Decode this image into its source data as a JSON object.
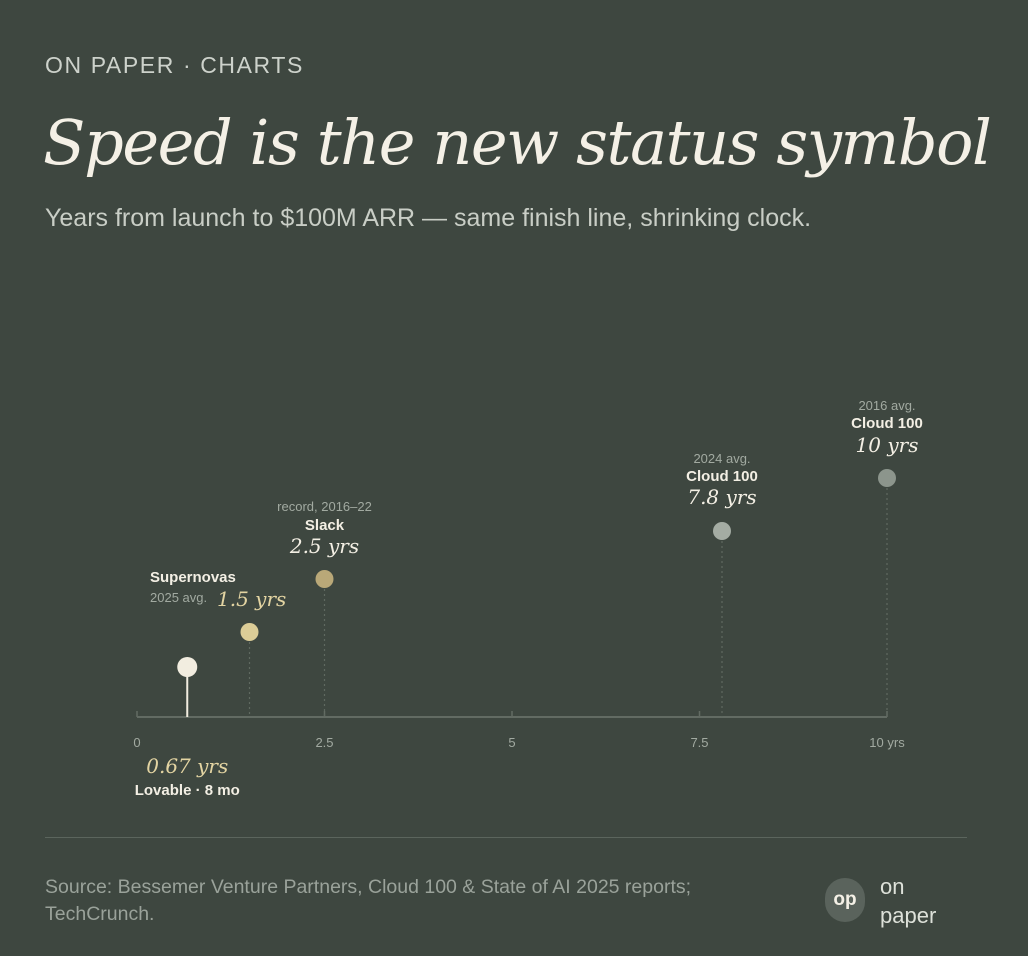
{
  "header": {
    "eyebrow": "ON PAPER · CHARTS",
    "title": "Speed is the new status symbol",
    "subtitle": "Years from launch to $100M ARR — same finish line, shrinking clock."
  },
  "chart_data": {
    "type": "scatter",
    "xlabel": "",
    "ylabel": "",
    "xlim": [
      0,
      10
    ],
    "grid": false,
    "axis_ticks": [
      {
        "value": 0,
        "label": "0"
      },
      {
        "value": 2.5,
        "label": "2.5"
      },
      {
        "value": 5,
        "label": "5"
      },
      {
        "value": 7.5,
        "label": "7.5"
      },
      {
        "value": 10,
        "label": "10 yrs"
      }
    ],
    "points": [
      {
        "id": "lovable",
        "x": 0.67,
        "value_label": "0.67 yrs",
        "name": "Lovable · 8 mo",
        "note": "",
        "color": "#f2ede0",
        "value_color": "#e3d4a2",
        "stem": "solid"
      },
      {
        "id": "supernovas",
        "x": 1.5,
        "value_label": "1.5 yrs",
        "name": "Supernovas",
        "note": "2025 avg.",
        "color": "#dccd97",
        "value_color": "#e3d4a2",
        "stem": "dotted"
      },
      {
        "id": "slack",
        "x": 2.5,
        "value_label": "2.5 yrs",
        "name": "Slack",
        "note": "record, 2016–22",
        "color": "#b9a878",
        "value_color": "#f3efe4",
        "stem": "dotted"
      },
      {
        "id": "cloud100-2024",
        "x": 7.8,
        "value_label": "7.8 yrs",
        "name": "Cloud 100",
        "note": "2024 avg.",
        "color": "#a4aca3",
        "value_color": "#f3efe4",
        "stem": "dotted"
      },
      {
        "id": "cloud100-2016",
        "x": 10,
        "value_label": "10 yrs",
        "name": "Cloud 100",
        "note": "2016 avg.",
        "color": "#8c958c",
        "value_color": "#f3efe4",
        "stem": "dotted"
      }
    ]
  },
  "footer": {
    "source": "Source: Bessemer Venture Partners, Cloud 100 & State of AI 2025 reports; TechCrunch.",
    "logo_mark": "op",
    "logo_line1": "on",
    "logo_line2": "paper"
  },
  "colors": {
    "background": "#3e4740",
    "axis": "#626b63",
    "stem_dotted": "#5f6960"
  }
}
